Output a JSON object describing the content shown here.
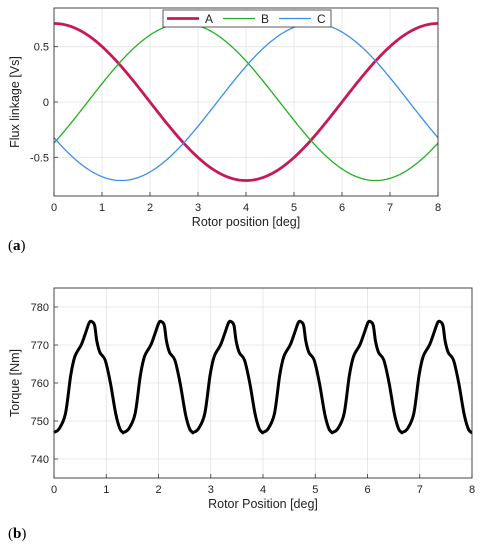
{
  "figure": {
    "panel_a_label": "a",
    "panel_b_label": "b"
  },
  "chart_data": [
    {
      "type": "line",
      "title": "",
      "xlabel": "Rotor position [deg]",
      "ylabel": "Flux linkage [Vs]",
      "xlim": [
        0,
        8
      ],
      "ylim": [
        -0.85,
        0.85
      ],
      "xticks": [
        0,
        1,
        2,
        3,
        4,
        5,
        6,
        7,
        8
      ],
      "yticks": [
        -0.5,
        0,
        0.5
      ],
      "ytick_labels": [
        "-0.5",
        "0",
        "0.5"
      ],
      "grid": true,
      "legend": "top-center",
      "series": [
        {
          "name": "A",
          "color": "#c8185a",
          "amplitude": 0.71,
          "period": 8,
          "peak_at": 0
        },
        {
          "name": "B",
          "color": "#22b022",
          "amplitude": 0.71,
          "period": 8,
          "peak_at": 2.7
        },
        {
          "name": "C",
          "color": "#3b8ef0",
          "amplitude": 0.71,
          "period": 8,
          "peak_at": 5.4
        }
      ]
    },
    {
      "type": "line",
      "title": "",
      "xlabel": "Rotor Position [deg]",
      "ylabel": "Torque [Nm]",
      "xlim": [
        0,
        8
      ],
      "ylim": [
        735,
        785
      ],
      "xticks": [
        0,
        1,
        2,
        3,
        4,
        5,
        6,
        7,
        8
      ],
      "yticks": [
        740,
        750,
        760,
        770,
        780
      ],
      "ytick_labels": [
        "740",
        "750",
        "760",
        "770",
        "780"
      ],
      "grid": true,
      "series": [
        {
          "name": "",
          "color": "#000000",
          "period": 1.3333,
          "x": [
            0.0,
            0.1,
            0.22,
            0.32,
            0.4,
            0.52,
            0.6,
            0.68,
            0.74,
            0.78,
            0.82,
            0.88,
            0.98,
            1.08,
            1.18,
            1.26,
            1.32,
            1.3333
          ],
          "y": [
            747,
            748,
            752,
            762,
            767,
            770,
            773,
            776,
            776,
            775,
            771,
            768,
            766,
            760,
            752,
            748,
            747,
            747
          ]
        }
      ]
    }
  ]
}
